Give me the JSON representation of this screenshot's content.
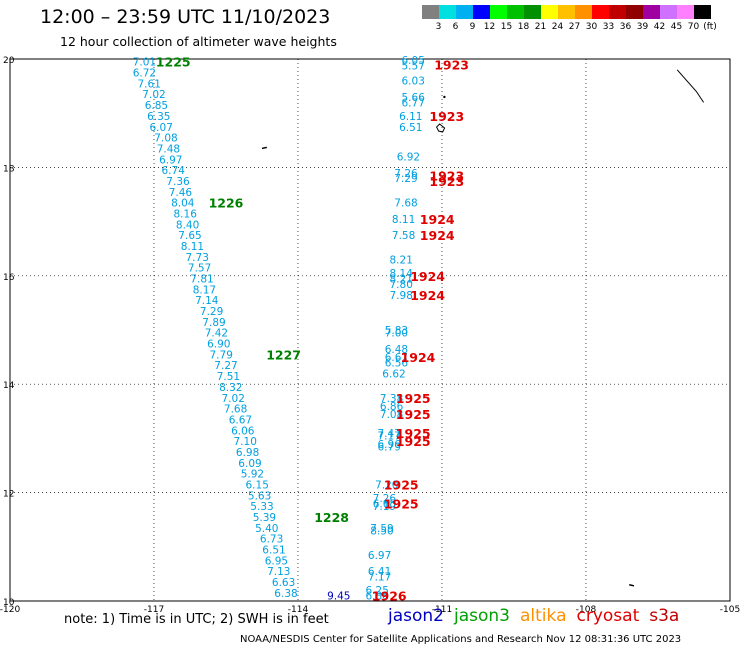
{
  "header": {
    "title": "12:00 – 23:59 UTC 11/10/2023",
    "subtitle": "12 hour collection of altimeter wave heights"
  },
  "colorscale": {
    "unit": "(ft)",
    "colors": [
      "#808080",
      "#00e0e0",
      "#00b0f0",
      "#0000ff",
      "#00ff00",
      "#00c000",
      "#009000",
      "#ffff00",
      "#ffc000",
      "#ff9000",
      "#ff0000",
      "#c00000",
      "#900000",
      "#a000a0",
      "#d070ff",
      "#ff80ff",
      "#000000"
    ],
    "labels": [
      "3",
      "6",
      "9",
      "12",
      "15",
      "18",
      "21",
      "24",
      "27",
      "30",
      "33",
      "36",
      "39",
      "42",
      "45",
      "70"
    ]
  },
  "footer": {
    "note": "note: 1) Time is in UTC; 2) SWH is in feet",
    "credit": "NOAA/NESDIS Center for Satellite Applications and Research    Nov 12 08:31:36 UTC 2023"
  },
  "legend": [
    {
      "name": "jason2",
      "color": "#0000c0"
    },
    {
      "name": "jason3",
      "color": "#00a000"
    },
    {
      "name": "altika",
      "color": "#ff9000"
    },
    {
      "name": "cryosat",
      "color": "#e00000"
    },
    {
      "name": "s3a",
      "color": "#c00000"
    }
  ],
  "chart_data": {
    "type": "scatter",
    "xlim": [
      -120,
      -105
    ],
    "ylim": [
      10,
      20
    ],
    "x_ticks": [
      "-120",
      "-117",
      "-114",
      "-111",
      "-108",
      "-105"
    ],
    "y_ticks": [
      "10",
      "12",
      "14",
      "16",
      "18",
      "20"
    ],
    "grid": true,
    "series": [
      {
        "name": "jason3",
        "color": "#00a0e0",
        "time_color": "#008000",
        "points": [
          {
            "x": -117.2,
            "y": 19.95,
            "v": "7.01"
          },
          {
            "x": -117.2,
            "y": 19.75,
            "v": "6.72"
          },
          {
            "x": -117.1,
            "y": 19.55,
            "v": "7.61"
          },
          {
            "x": -117.0,
            "y": 19.35,
            "v": "7.02"
          },
          {
            "x": -116.95,
            "y": 19.15,
            "v": "6.85"
          },
          {
            "x": -116.9,
            "y": 18.95,
            "v": "6.35"
          },
          {
            "x": -116.85,
            "y": 18.75,
            "v": "6.07"
          },
          {
            "x": -116.75,
            "y": 18.55,
            "v": "7.08"
          },
          {
            "x": -116.7,
            "y": 18.35,
            "v": "7.48"
          },
          {
            "x": -116.65,
            "y": 18.15,
            "v": "6.97"
          },
          {
            "x": -116.6,
            "y": 17.95,
            "v": "6.74"
          },
          {
            "x": -116.5,
            "y": 17.75,
            "v": "7.36"
          },
          {
            "x": -116.45,
            "y": 17.55,
            "v": "7.46"
          },
          {
            "x": -116.4,
            "y": 17.35,
            "v": "8.04"
          },
          {
            "x": -116.35,
            "y": 17.15,
            "v": "8.16"
          },
          {
            "x": -116.3,
            "y": 16.95,
            "v": "8.40"
          },
          {
            "x": -116.25,
            "y": 16.75,
            "v": "7.65"
          },
          {
            "x": -116.2,
            "y": 16.55,
            "v": "8.11"
          },
          {
            "x": -116.1,
            "y": 16.35,
            "v": "7.73"
          },
          {
            "x": -116.05,
            "y": 16.15,
            "v": "7.57"
          },
          {
            "x": -116.0,
            "y": 15.95,
            "v": "7.81"
          },
          {
            "x": -115.95,
            "y": 15.75,
            "v": "8.17"
          },
          {
            "x": -115.9,
            "y": 15.55,
            "v": "7.14"
          },
          {
            "x": -115.8,
            "y": 15.35,
            "v": "7.29"
          },
          {
            "x": -115.75,
            "y": 15.15,
            "v": "7.89"
          },
          {
            "x": -115.7,
            "y": 14.95,
            "v": "7.42"
          },
          {
            "x": -115.65,
            "y": 14.75,
            "v": "6.90"
          },
          {
            "x": -115.6,
            "y": 14.55,
            "v": "7.79"
          },
          {
            "x": -115.5,
            "y": 14.35,
            "v": "7.27"
          },
          {
            "x": -115.45,
            "y": 14.15,
            "v": "7.51"
          },
          {
            "x": -115.4,
            "y": 13.95,
            "v": "8.32"
          },
          {
            "x": -115.35,
            "y": 13.75,
            "v": "7.02"
          },
          {
            "x": -115.3,
            "y": 13.55,
            "v": "7.68"
          },
          {
            "x": -115.2,
            "y": 13.35,
            "v": "6.67"
          },
          {
            "x": -115.15,
            "y": 13.15,
            "v": "6.06"
          },
          {
            "x": -115.1,
            "y": 12.95,
            "v": "7.10"
          },
          {
            "x": -115.05,
            "y": 12.75,
            "v": "6.98"
          },
          {
            "x": -115.0,
            "y": 12.55,
            "v": "6.09"
          },
          {
            "x": -114.95,
            "y": 12.35,
            "v": "5.92"
          },
          {
            "x": -114.85,
            "y": 12.15,
            "v": "6.15"
          },
          {
            "x": -114.8,
            "y": 11.95,
            "v": "5.63"
          },
          {
            "x": -114.75,
            "y": 11.75,
            "v": "5.33"
          },
          {
            "x": -114.7,
            "y": 11.55,
            "v": "5.39"
          },
          {
            "x": -114.65,
            "y": 11.35,
            "v": "5.40"
          },
          {
            "x": -114.55,
            "y": 11.15,
            "v": "6.73"
          },
          {
            "x": -114.5,
            "y": 10.95,
            "v": "6.51"
          },
          {
            "x": -114.45,
            "y": 10.75,
            "v": "6.95"
          },
          {
            "x": -114.4,
            "y": 10.55,
            "v": "7.13"
          },
          {
            "x": -114.3,
            "y": 10.35,
            "v": "6.63"
          },
          {
            "x": -114.25,
            "y": 10.15,
            "v": "6.38"
          }
        ],
        "times": [
          {
            "x": -116.6,
            "y": 19.95,
            "t": "1225"
          },
          {
            "x": -115.5,
            "y": 17.35,
            "t": "1226"
          },
          {
            "x": -114.3,
            "y": 14.55,
            "t": "1227"
          },
          {
            "x": -113.3,
            "y": 11.55,
            "t": "1228"
          }
        ]
      },
      {
        "name": "cryosat",
        "color": "#00a0e0",
        "time_color": "#e00000",
        "points": [
          {
            "x": -111.6,
            "y": 19.98,
            "v": "6.05"
          },
          {
            "x": -111.6,
            "y": 19.88,
            "v": "5.57"
          },
          {
            "x": -111.6,
            "y": 19.6,
            "v": "6.03"
          },
          {
            "x": -111.6,
            "y": 19.3,
            "v": "5.66"
          },
          {
            "x": -111.6,
            "y": 19.2,
            "v": "6.77"
          },
          {
            "x": -111.65,
            "y": 18.95,
            "v": "6.11"
          },
          {
            "x": -111.65,
            "y": 18.75,
            "v": "6.51"
          },
          {
            "x": -111.7,
            "y": 18.2,
            "v": "6.92"
          },
          {
            "x": -111.75,
            "y": 17.9,
            "v": "7.26"
          },
          {
            "x": -111.75,
            "y": 17.8,
            "v": "7.29"
          },
          {
            "x": -111.75,
            "y": 17.35,
            "v": "7.68"
          },
          {
            "x": -111.8,
            "y": 17.05,
            "v": "8.11"
          },
          {
            "x": -111.8,
            "y": 16.75,
            "v": "7.58"
          },
          {
            "x": -111.85,
            "y": 16.3,
            "v": "8.21"
          },
          {
            "x": -111.85,
            "y": 16.05,
            "v": "8.14"
          },
          {
            "x": -111.85,
            "y": 15.95,
            "v": "8.21"
          },
          {
            "x": -111.85,
            "y": 15.85,
            "v": "7.80"
          },
          {
            "x": -111.85,
            "y": 15.65,
            "v": "7.98"
          },
          {
            "x": -111.95,
            "y": 15.0,
            "v": "5.83"
          },
          {
            "x": -111.95,
            "y": 14.95,
            "v": "7.00"
          },
          {
            "x": -111.95,
            "y": 14.65,
            "v": "6.48"
          },
          {
            "x": -111.95,
            "y": 14.5,
            "v": "6.67"
          },
          {
            "x": -111.95,
            "y": 14.4,
            "v": "6.56"
          },
          {
            "x": -112.0,
            "y": 14.2,
            "v": "6.62"
          },
          {
            "x": -112.05,
            "y": 13.75,
            "v": "7.38"
          },
          {
            "x": -112.05,
            "y": 13.6,
            "v": "6.86"
          },
          {
            "x": -112.05,
            "y": 13.45,
            "v": "7.08"
          },
          {
            "x": -112.1,
            "y": 13.1,
            "v": "7.47"
          },
          {
            "x": -112.1,
            "y": 13.05,
            "v": "7.17"
          },
          {
            "x": -112.1,
            "y": 12.9,
            "v": "6.96"
          },
          {
            "x": -112.1,
            "y": 12.85,
            "v": "6.79"
          },
          {
            "x": -112.15,
            "y": 12.15,
            "v": "7.20"
          },
          {
            "x": -112.2,
            "y": 11.9,
            "v": "7.26"
          },
          {
            "x": -112.2,
            "y": 11.8,
            "v": "6.65"
          },
          {
            "x": -112.2,
            "y": 11.75,
            "v": "7.19"
          },
          {
            "x": -112.25,
            "y": 11.35,
            "v": "7.59"
          },
          {
            "x": -112.25,
            "y": 11.3,
            "v": "8.50"
          },
          {
            "x": -112.3,
            "y": 10.85,
            "v": "6.97"
          },
          {
            "x": -112.3,
            "y": 10.55,
            "v": "6.41"
          },
          {
            "x": -112.3,
            "y": 10.45,
            "v": "7.17"
          },
          {
            "x": -112.35,
            "y": 10.2,
            "v": "6.25"
          },
          {
            "x": -112.35,
            "y": 10.1,
            "v": "6.88"
          }
        ],
        "times": [
          {
            "x": -110.8,
            "y": 19.9,
            "t": "1923"
          },
          {
            "x": -110.9,
            "y": 18.95,
            "t": "1923"
          },
          {
            "x": -110.9,
            "y": 17.85,
            "t": "1923"
          },
          {
            "x": -110.9,
            "y": 17.75,
            "t": "1923"
          },
          {
            "x": -111.1,
            "y": 17.05,
            "t": "1924"
          },
          {
            "x": -111.1,
            "y": 16.75,
            "t": "1924"
          },
          {
            "x": -111.3,
            "y": 16.0,
            "t": "1924"
          },
          {
            "x": -111.3,
            "y": 15.65,
            "t": "1924"
          },
          {
            "x": -111.5,
            "y": 14.5,
            "t": "1924"
          },
          {
            "x": -111.6,
            "y": 13.75,
            "t": "1925"
          },
          {
            "x": -111.6,
            "y": 13.45,
            "t": "1925"
          },
          {
            "x": -111.6,
            "y": 13.1,
            "t": "1925"
          },
          {
            "x": -111.6,
            "y": 12.95,
            "t": "1925"
          },
          {
            "x": -111.85,
            "y": 12.15,
            "t": "1925"
          },
          {
            "x": -111.85,
            "y": 11.8,
            "t": "1925"
          },
          {
            "x": -112.1,
            "y": 10.1,
            "t": "1926"
          }
        ]
      },
      {
        "name": "jason2",
        "color": "#0000c0",
        "points": [
          {
            "x": -113.15,
            "y": 10.1,
            "v": "9.45"
          }
        ]
      }
    ]
  }
}
